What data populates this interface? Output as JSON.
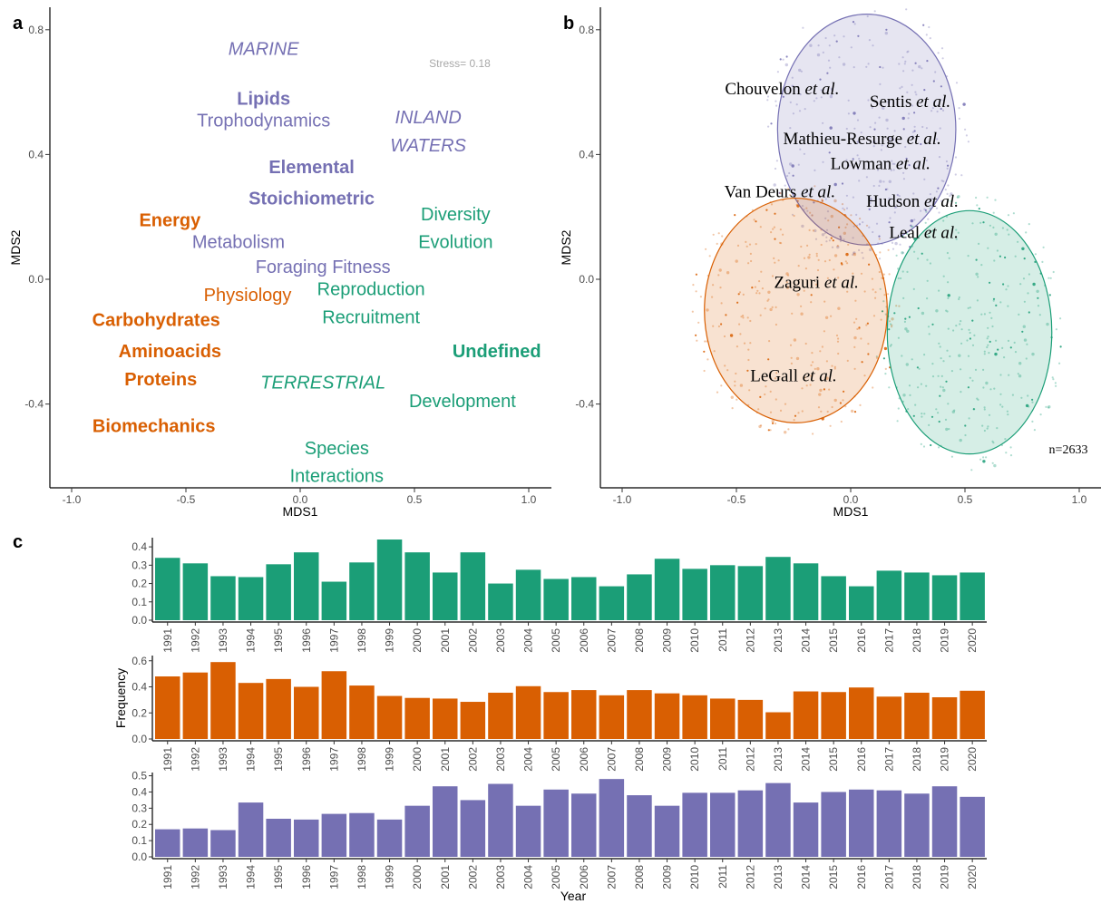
{
  "colors": {
    "orange": "#D95F02",
    "green": "#1B9E77",
    "purple": "#7570B3"
  },
  "panels": {
    "a": "a",
    "b": "b",
    "c": "c"
  },
  "chart_data": [
    {
      "panel": "a",
      "type": "scatter",
      "xlabel": "MDS1",
      "ylabel": "MDS2",
      "xlim": [
        -1.1,
        1.1
      ],
      "ylim": [
        -0.68,
        0.86
      ],
      "xticks": [
        "-1.0",
        "-0.5",
        "0.0",
        "0.5",
        "1.0"
      ],
      "yticks": [
        "-0.4",
        "0.0",
        "0.4",
        "0.8"
      ],
      "annotation": "Stress= 0.18",
      "labels": [
        {
          "text": "MARINE",
          "x": -0.16,
          "y": 0.74,
          "color": "purple",
          "style": "italic"
        },
        {
          "text": "Lipids",
          "x": -0.16,
          "y": 0.58,
          "color": "purple",
          "style": "bold"
        },
        {
          "text": "Trophodynamics",
          "x": -0.16,
          "y": 0.51,
          "color": "purple",
          "style": "normal"
        },
        {
          "text": "INLAND",
          "x": 0.56,
          "y": 0.52,
          "color": "purple",
          "style": "italic"
        },
        {
          "text": "WATERS",
          "x": 0.56,
          "y": 0.43,
          "color": "purple",
          "style": "italic"
        },
        {
          "text": "Elemental",
          "x": 0.05,
          "y": 0.36,
          "color": "purple",
          "style": "bold"
        },
        {
          "text": "Stoichiometric",
          "x": 0.05,
          "y": 0.26,
          "color": "purple",
          "style": "bold"
        },
        {
          "text": "Diversity",
          "x": 0.68,
          "y": 0.21,
          "color": "green",
          "style": "normal"
        },
        {
          "text": "Energy",
          "x": -0.57,
          "y": 0.19,
          "color": "orange",
          "style": "bold"
        },
        {
          "text": "Metabolism",
          "x": -0.27,
          "y": 0.12,
          "color": "purple",
          "style": "normal"
        },
        {
          "text": "Evolution",
          "x": 0.68,
          "y": 0.12,
          "color": "green",
          "style": "normal"
        },
        {
          "text": "Foraging Fitness",
          "x": 0.1,
          "y": 0.04,
          "color": "purple",
          "style": "normal"
        },
        {
          "text": "Reproduction",
          "x": 0.31,
          "y": -0.03,
          "color": "green",
          "style": "normal"
        },
        {
          "text": "Physiology",
          "x": -0.23,
          "y": -0.05,
          "color": "orange",
          "style": "normal"
        },
        {
          "text": "Carbohydrates",
          "x": -0.63,
          "y": -0.13,
          "color": "orange",
          "style": "bold"
        },
        {
          "text": "Recruitment",
          "x": 0.31,
          "y": -0.12,
          "color": "green",
          "style": "normal"
        },
        {
          "text": "Aminoacids",
          "x": -0.57,
          "y": -0.23,
          "color": "orange",
          "style": "bold"
        },
        {
          "text": "Undefined",
          "x": 0.86,
          "y": -0.23,
          "color": "green",
          "style": "bold"
        },
        {
          "text": "Proteins",
          "x": -0.61,
          "y": -0.32,
          "color": "orange",
          "style": "bold"
        },
        {
          "text": "TERRESTRIAL",
          "x": 0.1,
          "y": -0.33,
          "color": "green",
          "style": "italic"
        },
        {
          "text": "Development",
          "x": 0.71,
          "y": -0.39,
          "color": "green",
          "style": "normal"
        },
        {
          "text": "Biomechanics",
          "x": -0.64,
          "y": -0.47,
          "color": "orange",
          "style": "bold"
        },
        {
          "text": "Species",
          "x": 0.16,
          "y": -0.54,
          "color": "green",
          "style": "normal"
        },
        {
          "text": "Interactions",
          "x": 0.16,
          "y": -0.63,
          "color": "green",
          "style": "normal"
        }
      ]
    },
    {
      "panel": "b",
      "type": "scatter",
      "xlabel": "MDS1",
      "ylabel": "MDS2",
      "xlim": [
        -1.1,
        1.1
      ],
      "ylim": [
        -0.68,
        0.86
      ],
      "xticks": [
        "-1.0",
        "-0.5",
        "0.0",
        "0.5",
        "1.0"
      ],
      "yticks": [
        "-0.4",
        "0.0",
        "0.4",
        "0.8"
      ],
      "annotation": "n=2633",
      "ellipses": [
        {
          "color": "purple",
          "cx": 0.07,
          "cy": 0.48,
          "rx": 0.39,
          "ry": 0.37
        },
        {
          "color": "orange",
          "cx": -0.24,
          "cy": -0.1,
          "rx": 0.4,
          "ry": 0.36
        },
        {
          "color": "green",
          "cx": 0.52,
          "cy": -0.17,
          "rx": 0.36,
          "ry": 0.39
        }
      ],
      "authors": [
        {
          "name": "Chouvelon",
          "suffix": "et al.",
          "x": -0.3,
          "y": 0.61
        },
        {
          "name": "Sentis",
          "suffix": "et al.",
          "x": 0.26,
          "y": 0.57
        },
        {
          "name": "Mathieu-Resurge",
          "suffix": "et al.",
          "x": 0.05,
          "y": 0.45
        },
        {
          "name": "Lowman",
          "suffix": "et al.",
          "x": 0.13,
          "y": 0.37
        },
        {
          "name": "Van Deurs",
          "suffix": "et al.",
          "x": -0.31,
          "y": 0.28
        },
        {
          "name": "Hudson",
          "suffix": "et al.",
          "x": 0.27,
          "y": 0.25
        },
        {
          "name": "Leal",
          "suffix": "et al.",
          "x": 0.32,
          "y": 0.15
        },
        {
          "name": "Zaguri",
          "suffix": "et al.",
          "x": -0.15,
          "y": -0.01
        },
        {
          "name": "LeGall",
          "suffix": "et al.",
          "x": -0.25,
          "y": -0.31
        }
      ]
    },
    {
      "panel": "c",
      "type": "bar",
      "xlabel": "Year",
      "ylabel": "Frequency",
      "categories": [
        "1991",
        "1992",
        "1993",
        "1994",
        "1995",
        "1996",
        "1997",
        "1998",
        "1999",
        "2000",
        "2001",
        "2002",
        "2003",
        "2004",
        "2005",
        "2006",
        "2007",
        "2008",
        "2009",
        "2010",
        "2011",
        "2012",
        "2013",
        "2014",
        "2015",
        "2016",
        "2017",
        "2018",
        "2019",
        "2020"
      ],
      "series": [
        {
          "color": "green",
          "ylim": [
            0,
            0.45
          ],
          "yticks": [
            "0.0",
            "0.1",
            "0.2",
            "0.3",
            "0.4"
          ],
          "values": [
            0.34,
            0.31,
            0.24,
            0.235,
            0.305,
            0.37,
            0.21,
            0.315,
            0.44,
            0.37,
            0.26,
            0.37,
            0.2,
            0.275,
            0.225,
            0.235,
            0.185,
            0.25,
            0.335,
            0.28,
            0.3,
            0.295,
            0.345,
            0.31,
            0.24,
            0.185,
            0.27,
            0.26,
            0.245,
            0.26
          ]
        },
        {
          "color": "orange",
          "ylim": [
            0,
            0.64
          ],
          "yticks": [
            "0.0",
            "0.2",
            "0.4",
            "0.6"
          ],
          "values": [
            0.48,
            0.51,
            0.59,
            0.43,
            0.46,
            0.4,
            0.52,
            0.41,
            0.33,
            0.315,
            0.31,
            0.285,
            0.355,
            0.405,
            0.36,
            0.375,
            0.335,
            0.375,
            0.35,
            0.335,
            0.31,
            0.3,
            0.205,
            0.365,
            0.36,
            0.395,
            0.325,
            0.355,
            0.32,
            0.37
          ]
        },
        {
          "color": "purple",
          "ylim": [
            0,
            0.52
          ],
          "yticks": [
            "0.0",
            "0.1",
            "0.2",
            "0.3",
            "0.4",
            "0.5"
          ],
          "values": [
            0.17,
            0.175,
            0.165,
            0.335,
            0.235,
            0.23,
            0.265,
            0.27,
            0.23,
            0.315,
            0.435,
            0.35,
            0.45,
            0.315,
            0.415,
            0.39,
            0.48,
            0.38,
            0.315,
            0.395,
            0.395,
            0.41,
            0.455,
            0.335,
            0.4,
            0.415,
            0.41,
            0.39,
            0.435,
            0.37
          ]
        }
      ]
    }
  ]
}
